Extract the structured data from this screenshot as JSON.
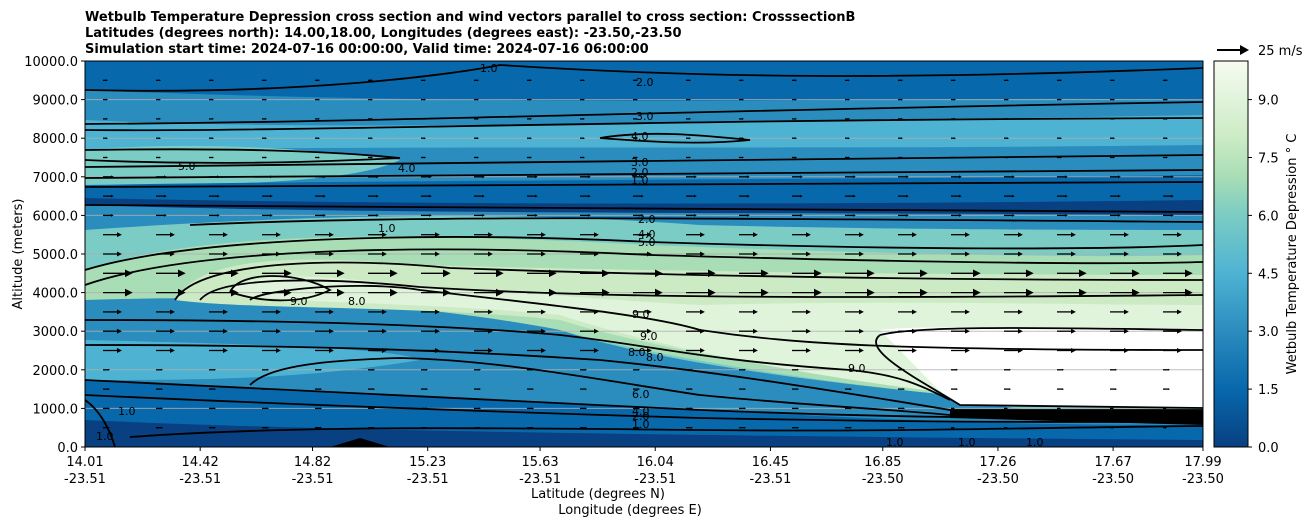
{
  "chart_data": {
    "type": "contour",
    "title_lines": [
      "Wetbulb Temperature Depression cross section and wind vectors parallel to cross section: CrosssectionB",
      "Latitudes (degrees north): 14.00,18.00, Longitudes (degrees east): -23.50,-23.50",
      "Simulation start time: 2024-07-16 00:00:00, Valid time: 2024-07-16 06:00:00"
    ],
    "ylabel": "Altitude (meters)",
    "xlabel_lat": "Latitude (degrees N)",
    "xlabel_lon": "Longitude (degrees E)",
    "ylim": [
      0,
      10000
    ],
    "y_ticks": [
      "0.0",
      "1000.0",
      "2000.0",
      "3000.0",
      "4000.0",
      "5000.0",
      "6000.0",
      "7000.0",
      "8000.0",
      "9000.0",
      "10000.0"
    ],
    "x_ticks": [
      {
        "lat": "14.01",
        "lon": "-23.51"
      },
      {
        "lat": "14.42",
        "lon": "-23.51"
      },
      {
        "lat": "14.82",
        "lon": "-23.51"
      },
      {
        "lat": "15.23",
        "lon": "-23.51"
      },
      {
        "lat": "15.63",
        "lon": "-23.51"
      },
      {
        "lat": "16.04",
        "lon": "-23.51"
      },
      {
        "lat": "16.45",
        "lon": "-23.51"
      },
      {
        "lat": "16.85",
        "lon": "-23.50"
      },
      {
        "lat": "17.26",
        "lon": "-23.50"
      },
      {
        "lat": "17.67",
        "lon": "-23.50"
      },
      {
        "lat": "17.99",
        "lon": "-23.50"
      }
    ],
    "colorbar": {
      "label": "Wetbulb Temperature Depression ° C",
      "ticks": [
        "0.0",
        "1.5",
        "3.0",
        "4.5",
        "6.0",
        "7.5",
        "9.0"
      ],
      "vmin": 0,
      "vmax": 10
    },
    "wind_key": {
      "label": "25 m/s"
    },
    "contour_labels": [
      "1.0",
      "2.0",
      "3.0",
      "4.0",
      "3.0",
      "2.0",
      "1.0",
      "5.0",
      "4.0",
      "2.0",
      "4.0",
      "5.0",
      "1.0",
      "9.0",
      "8.0",
      "9.0",
      "9.0",
      "8.0",
      "8.0",
      "9.0",
      "6.0",
      "4.0",
      "2.0",
      "1.0",
      "1.0",
      "1.0",
      "1.0",
      "1.0",
      "1.0"
    ]
  },
  "colors": {
    "background": "#ffffff",
    "cmap": [
      "#084081",
      "#0868ac",
      "#2b8cbe",
      "#4eb3d3",
      "#7bccc4",
      "#a8ddb5",
      "#ccebc5",
      "#e0f3db",
      "#f7fcf0"
    ]
  }
}
